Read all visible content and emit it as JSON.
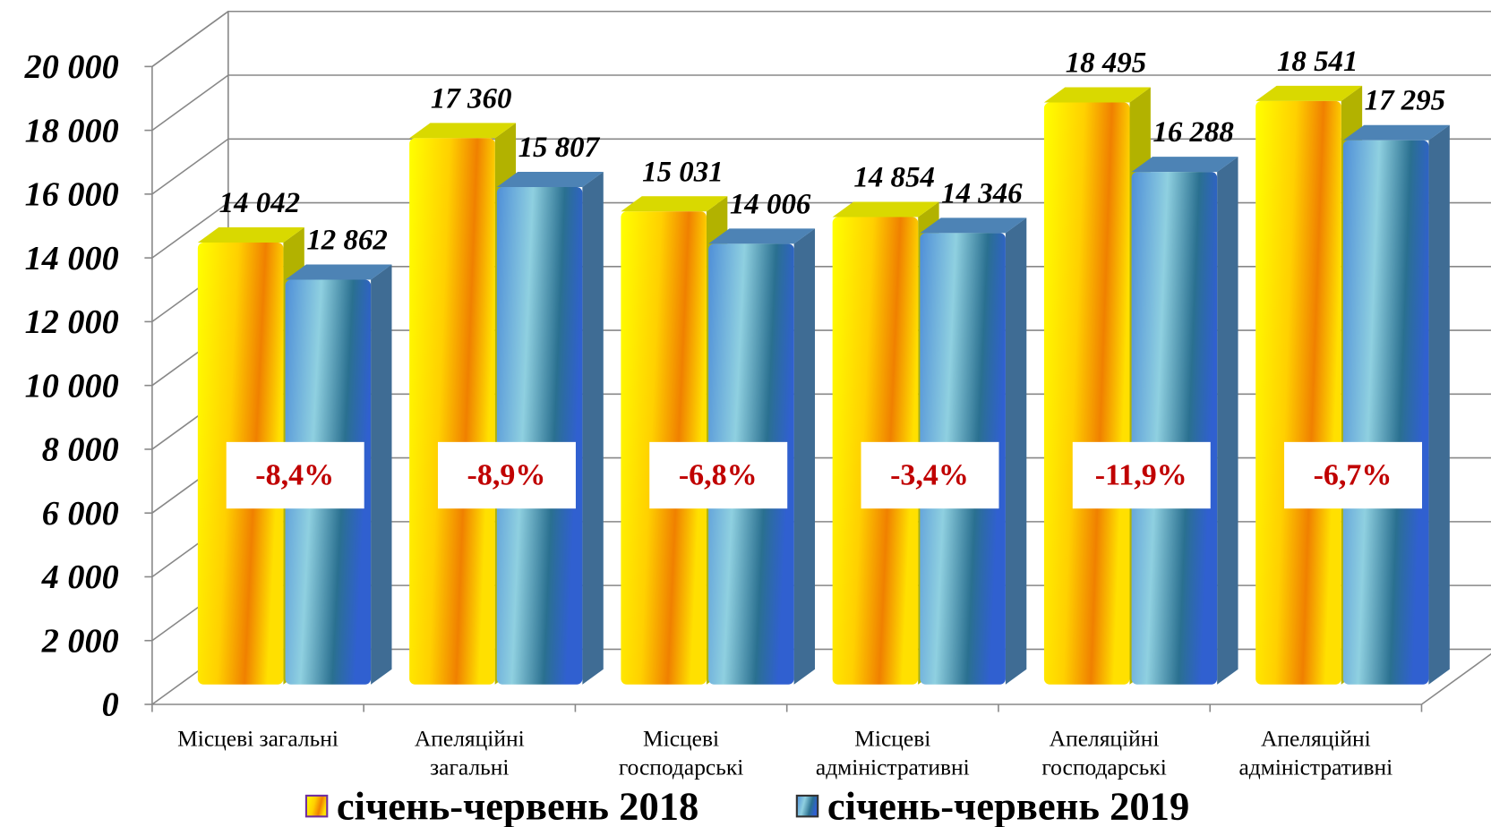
{
  "chart_data": {
    "type": "bar3d",
    "categories": [
      [
        "Місцеві загальні"
      ],
      [
        "Апеляційні",
        "загальні"
      ],
      [
        "Місцеві",
        "господарські"
      ],
      [
        "Місцеві",
        "адміністративні"
      ],
      [
        "Апеляційні",
        "господарські"
      ],
      [
        "Апеляційні",
        "адміністративні"
      ]
    ],
    "series": [
      {
        "name": "січень-червень 2018",
        "color": "#ffff00",
        "values": [
          14042,
          17360,
          15031,
          14854,
          18495,
          18541
        ],
        "value_labels": [
          "14 042",
          "17 360",
          "15 031",
          "14 854",
          "18 495",
          "18 541"
        ]
      },
      {
        "name": "січень-червень 2019",
        "color": "#5b9bd5",
        "values": [
          12862,
          15807,
          14006,
          14346,
          16288,
          17295
        ],
        "value_labels": [
          "12 862",
          "15 807",
          "14 006",
          "14 346",
          "16 288",
          "17 295"
        ]
      }
    ],
    "annotations": [
      "-8,4%",
      "-8,9%",
      "-6,8%",
      "-3,4%",
      "-11,9%",
      "-6,7%"
    ],
    "ylim": [
      0,
      20000
    ],
    "yticks": [
      0,
      {
        "value": 2000,
        "label": "2 000"
      },
      {
        "value": 4000,
        "label": "4 000"
      },
      {
        "value": 6000,
        "label": "6 000"
      },
      {
        "value": 8000,
        "label": "8 000"
      },
      {
        "value": 10000,
        "label": "10 000"
      },
      {
        "value": 12000,
        "label": "12 000"
      },
      {
        "value": 14000,
        "label": "14 000"
      },
      {
        "value": 16000,
        "label": "16 000"
      },
      {
        "value": 18000,
        "label": "18 000"
      },
      {
        "value": 20000,
        "label": "20 000"
      }
    ],
    "grid": true,
    "legend": "bottom"
  }
}
